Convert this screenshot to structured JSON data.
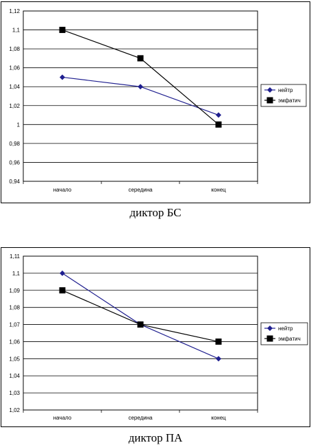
{
  "chart_data": [
    {
      "type": "line",
      "title": "",
      "caption": "диктор БС",
      "categories": [
        "начало",
        "середина",
        "конец"
      ],
      "ylim": [
        0.94,
        1.12
      ],
      "yticks": [
        0.94,
        0.96,
        0.98,
        1,
        1.02,
        1.04,
        1.06,
        1.08,
        1.1,
        1.12
      ],
      "ytick_labels": [
        "0,94",
        "0,96",
        "0,98",
        "1",
        "1,02",
        "1,04",
        "1,06",
        "1,08",
        "1,1",
        "1,12"
      ],
      "grid": true,
      "legend_position": "right",
      "series": [
        {
          "name": "нейтр",
          "values": [
            1.05,
            1.04,
            1.01
          ],
          "color": "#1f1f8f",
          "marker": "diamond"
        },
        {
          "name": "эмфатич",
          "values": [
            1.1,
            1.07,
            1.0
          ],
          "color": "#000000",
          "marker": "square"
        }
      ]
    },
    {
      "type": "line",
      "title": "",
      "caption": "диктор ПА",
      "categories": [
        "начало",
        "середина",
        "конец"
      ],
      "ylim": [
        1.02,
        1.11
      ],
      "yticks": [
        1.02,
        1.03,
        1.04,
        1.05,
        1.06,
        1.07,
        1.08,
        1.09,
        1.1,
        1.11
      ],
      "ytick_labels": [
        "1,02",
        "1,03",
        "1,04",
        "1,05",
        "1,06",
        "1,07",
        "1,08",
        "1,09",
        "1,1",
        "1,11"
      ],
      "grid": true,
      "legend_position": "right",
      "series": [
        {
          "name": "нейтр",
          "values": [
            1.1,
            1.07,
            1.05
          ],
          "color": "#1f1f8f",
          "marker": "diamond"
        },
        {
          "name": "эмфатич",
          "values": [
            1.09,
            1.07,
            1.06
          ],
          "color": "#000000",
          "marker": "square"
        }
      ]
    }
  ]
}
